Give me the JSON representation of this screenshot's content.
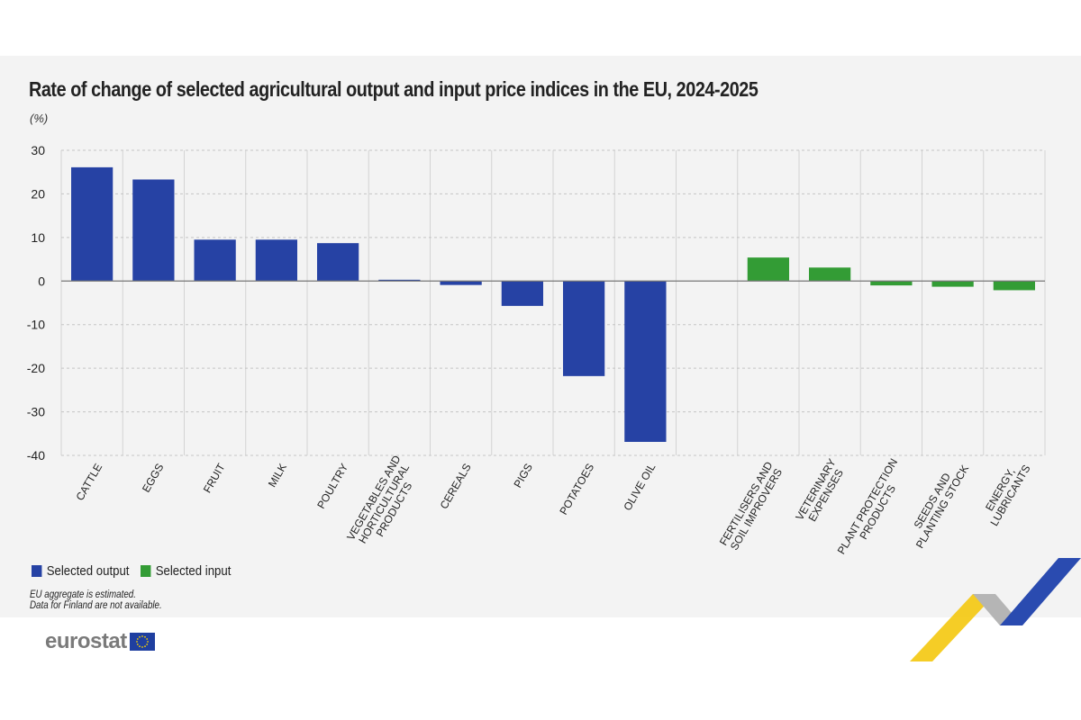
{
  "chart_data": {
    "type": "bar",
    "title": "Rate of change of selected agricultural output and input price indices in the EU, 2024-2025",
    "ylabel": "(%)",
    "ylim": [
      -40,
      30
    ],
    "yticks": [
      30,
      20,
      10,
      0,
      -10,
      -20,
      -30,
      -40
    ],
    "grid": true,
    "legend_position": "bottom-left",
    "categories": [
      [
        "CATTLE"
      ],
      [
        "EGGS"
      ],
      [
        "FRUIT"
      ],
      [
        "MILK"
      ],
      [
        "POULTRY"
      ],
      [
        "VEGETABLES AND",
        "HORTICULTURAL",
        "PRODUCTS"
      ],
      [
        "CEREALS"
      ],
      [
        "PIGS"
      ],
      [
        "POTATOES"
      ],
      [
        "OLIVE OIL"
      ],
      [],
      [
        "FERTILISERS AND",
        "SOIL IMPROVERS"
      ],
      [
        "VETERINARY",
        "EXPENSES"
      ],
      [
        "PLANT PROTECTION",
        "PRODUCTS"
      ],
      [
        "SEEDS AND",
        "PLANTING STOCK"
      ],
      [
        "ENERGY,",
        "LUBRICANTS"
      ]
    ],
    "series": [
      {
        "name": "Selected output",
        "color": "#2642a4",
        "values": [
          26.1,
          23.3,
          9.5,
          9.5,
          8.7,
          0.3,
          -0.9,
          -5.7,
          -21.8,
          -36.9,
          null,
          null,
          null,
          null,
          null,
          null
        ]
      },
      {
        "name": "Selected input",
        "color": "#339c35",
        "values": [
          null,
          null,
          null,
          null,
          null,
          null,
          null,
          null,
          null,
          null,
          null,
          5.4,
          3.1,
          -1.0,
          -1.3,
          -2.1
        ]
      }
    ]
  },
  "notes": [
    "EU aggregate is estimated.",
    "Data for Finland are not available."
  ],
  "logo": "eurostat"
}
